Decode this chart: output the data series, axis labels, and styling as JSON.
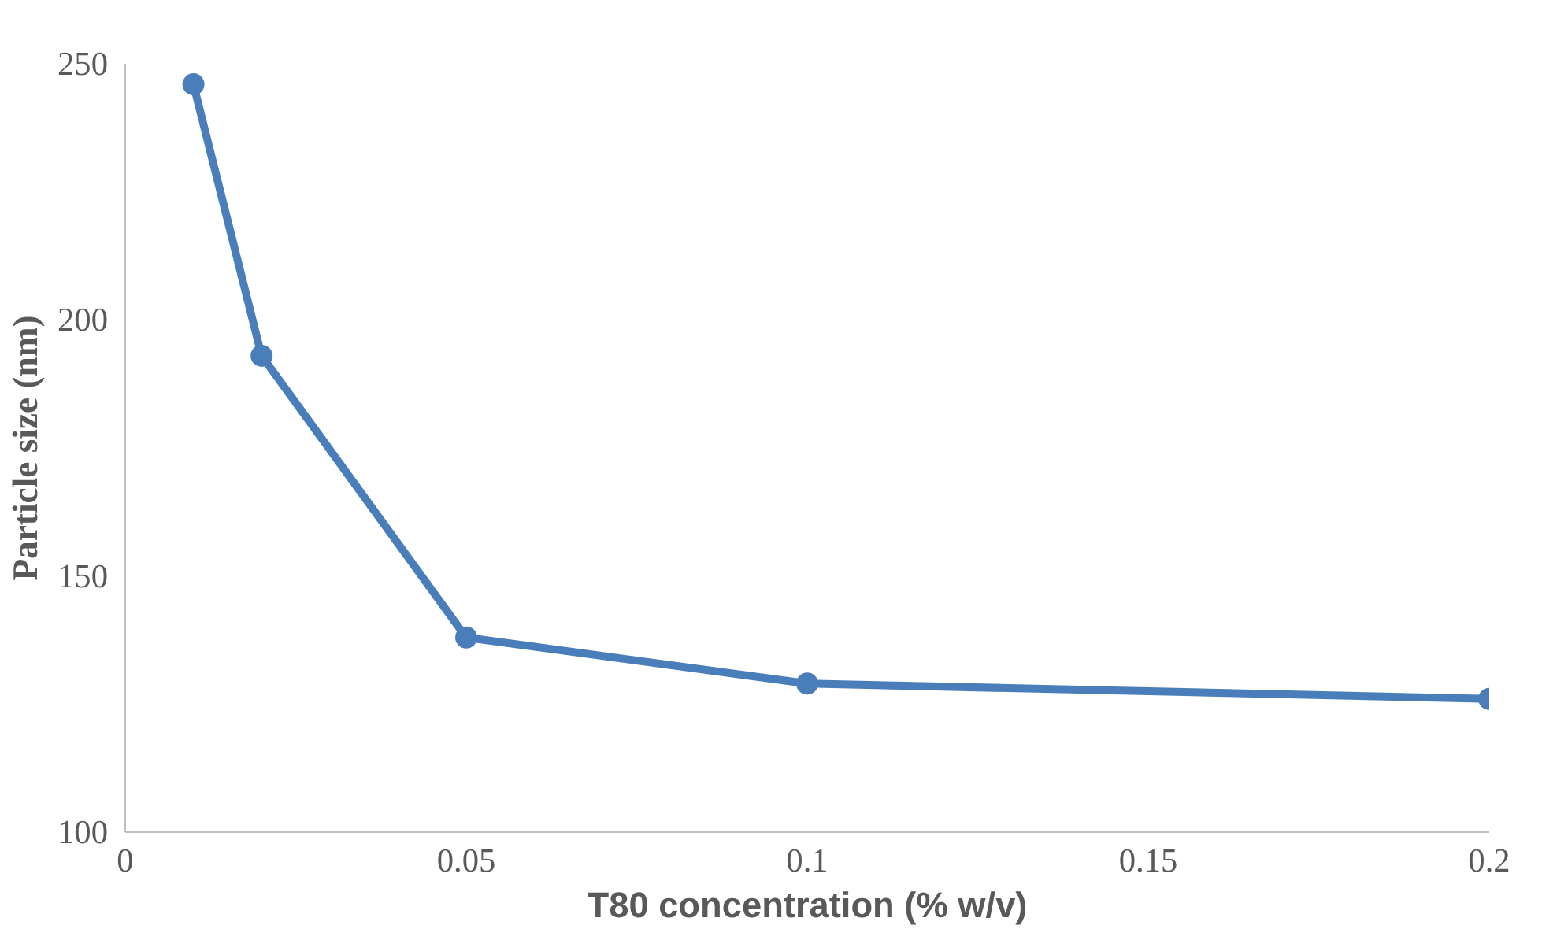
{
  "chart_data": {
    "type": "line",
    "xlabel": "T80 concentration (% w/v)",
    "ylabel": "Particle size (nm)",
    "x": [
      0.01,
      0.02,
      0.05,
      0.1,
      0.2
    ],
    "series": [
      {
        "color": "#4a7ebb",
        "values": [
          246,
          193,
          138,
          129,
          126
        ]
      }
    ],
    "xlim": [
      0,
      0.2
    ],
    "ylim": [
      100,
      250
    ],
    "xticks": [
      0,
      0.05,
      0.1,
      0.15,
      0.2
    ],
    "yticks": [
      100,
      150,
      200,
      250
    ],
    "grid": false,
    "marker": "circle",
    "line_style": "solid"
  }
}
